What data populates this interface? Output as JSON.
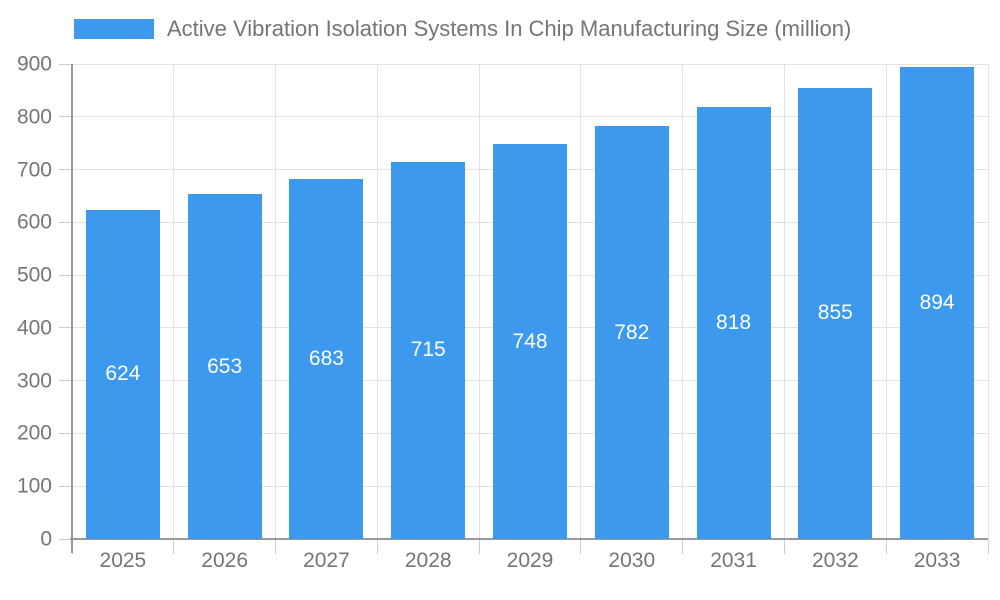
{
  "chart_data": {
    "type": "bar",
    "title": "Active Vibration Isolation Systems In Chip Manufacturing Size (million)",
    "legend": {
      "label": "Active Vibration Isolation Systems In Chip Manufacturing Size (million)",
      "position": "top"
    },
    "categories": [
      "2025",
      "2026",
      "2027",
      "2028",
      "2029",
      "2030",
      "2031",
      "2032",
      "2033"
    ],
    "series": [
      {
        "name": "Active Vibration Isolation Systems In Chip Manufacturing Size (million)",
        "values": [
          624,
          653,
          683,
          715,
          748,
          782,
          818,
          855,
          894
        ]
      }
    ],
    "data_labels": [
      "624",
      "653",
      "683",
      "715",
      "748",
      "782",
      "818",
      "855",
      "894"
    ],
    "xlabel": "",
    "ylabel": "",
    "ylim": [
      0,
      900
    ],
    "ytick_step": 100,
    "yticks": [
      0,
      100,
      200,
      300,
      400,
      500,
      600,
      700,
      800,
      900
    ],
    "grid": true,
    "colors": {
      "bar": "#3C99EE",
      "text": "#757575",
      "value_label": "#FFFFFF",
      "gridline": "#E3E3E3",
      "axis": "#999999",
      "tick": "#CCCCCC",
      "background": "#FFFFFF"
    }
  }
}
